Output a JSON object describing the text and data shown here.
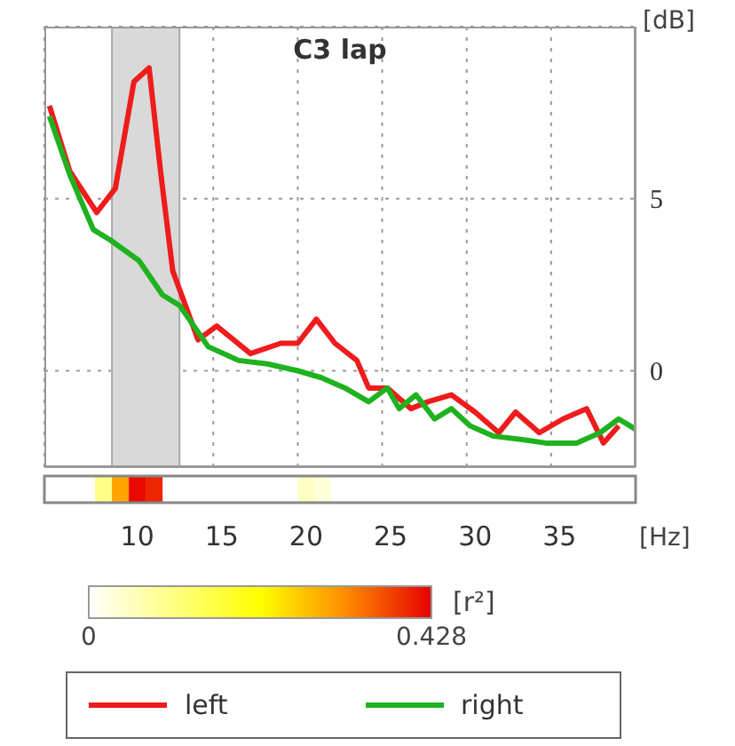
{
  "chart_data": [
    {
      "type": "line",
      "title": "C3 lap",
      "ylabel": "[dB]",
      "xlim": [
        5,
        40
      ],
      "xticks": [
        10,
        15,
        20,
        25,
        30,
        35
      ],
      "ylim": [
        -2.8,
        10
      ],
      "yticks": [
        0,
        5
      ],
      "tick_labels": "y",
      "grid": true,
      "legend": "bottom",
      "bands": [
        {
          "axis": "x",
          "from": 9,
          "to": 13,
          "color": "#d9d9d9"
        }
      ],
      "series": [
        {
          "name": "left",
          "color": "#ee1c1c",
          "x": [
            5.3,
            6.5,
            8.1,
            9.2,
            10.3,
            11.2,
            11.9,
            12.6,
            14.1,
            15.2,
            17.2,
            19,
            20,
            21.1,
            22.2,
            23.5,
            24.2,
            25.3,
            26.7,
            27.7,
            29.1,
            30.5,
            31.9,
            32.9,
            34.3,
            35.7,
            37.1,
            38.1,
            39
          ],
          "values": [
            7.7,
            5.8,
            4.6,
            5.3,
            8.4,
            8.8,
            5.7,
            2.9,
            0.9,
            1.3,
            0.5,
            0.8,
            0.8,
            1.5,
            0.8,
            0.3,
            -0.5,
            -0.5,
            -1.1,
            -0.9,
            -0.7,
            -1.2,
            -1.8,
            -1.2,
            -1.8,
            -1.4,
            -1.1,
            -2.1,
            -1.6
          ]
        },
        {
          "name": "right",
          "color": "#1fb21f",
          "x": [
            5.3,
            6.5,
            7.9,
            8.9,
            10.6,
            12,
            13,
            14.7,
            16.5,
            18.2,
            20,
            21.4,
            22.8,
            24.2,
            25.3,
            26,
            27,
            28.1,
            29.1,
            30.2,
            31.6,
            33.3,
            34.7,
            36.5,
            37.9,
            39,
            40
          ],
          "values": [
            7.4,
            5.7,
            4.1,
            3.8,
            3.2,
            2.2,
            1.9,
            0.7,
            0.3,
            0.2,
            0,
            -0.2,
            -0.5,
            -0.9,
            -0.5,
            -1.1,
            -0.7,
            -1.4,
            -1.1,
            -1.6,
            -1.9,
            -2,
            -2.1,
            -2.1,
            -1.8,
            -1.4,
            -1.7
          ]
        }
      ]
    },
    {
      "type": "heatmap",
      "xlabel": "[Hz]",
      "clabel": "[r²]",
      "clim": [
        0,
        0.428
      ],
      "cticks": [
        0,
        0.428
      ],
      "categories": [
        null,
        null,
        null,
        null,
        null,
        "10",
        null,
        null,
        null,
        null,
        "15",
        null,
        null,
        null,
        null,
        "20",
        null,
        null,
        null,
        null,
        "25",
        null,
        null,
        null,
        null,
        "30",
        null,
        null,
        null,
        null,
        "35",
        null,
        null,
        null,
        null
      ],
      "y_categories": [
        null
      ],
      "cells": [
        [
          0,
          0,
          0,
          0.1,
          0.3,
          0.42,
          0.4,
          0,
          0,
          0,
          0,
          0,
          0,
          0,
          0,
          0.05,
          0.03,
          0,
          0,
          0,
          0,
          0,
          0,
          0,
          0,
          0,
          0,
          0,
          0,
          0,
          0,
          0,
          0,
          0,
          0
        ]
      ]
    }
  ]
}
